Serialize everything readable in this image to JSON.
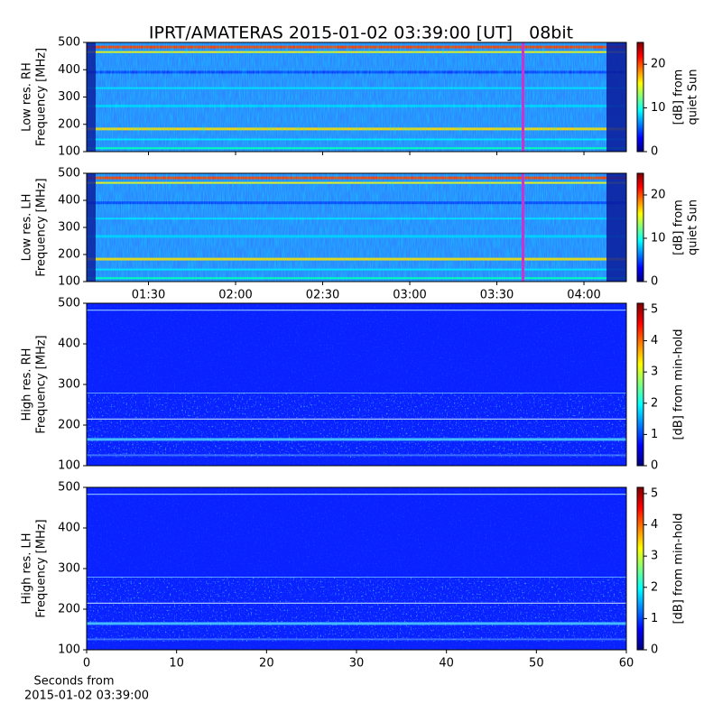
{
  "chart_data": [
    {
      "type": "heatmap",
      "title": "IPRT/AMATERAS 2015-01-02 03:39:00 [UT]   08bit",
      "ylabel": [
        "Low res. RH",
        "Frequency [MHz]"
      ],
      "ylim": [
        100,
        500
      ],
      "yticks": [
        100,
        200,
        300,
        400,
        500
      ],
      "xlim": [
        68.7,
        254.6
      ],
      "marker_x": 219,
      "marker_color": "#cc33cc",
      "colorbar_label": [
        "[dB] from",
        "quiet Sun"
      ],
      "clim": [
        0,
        25
      ],
      "cticks": [
        0,
        10,
        20
      ]
    },
    {
      "type": "heatmap",
      "ylabel": [
        "Low res. LH",
        "Frequency [MHz]"
      ],
      "ylim": [
        100,
        500
      ],
      "yticks": [
        100,
        200,
        300,
        400,
        500
      ],
      "xlim": [
        68.7,
        254.6
      ],
      "marker_x": 219,
      "marker_color": "#cc33cc",
      "xticks": [
        {
          "value": 90,
          "label": "01:30"
        },
        {
          "value": 120,
          "label": "02:00"
        },
        {
          "value": 150,
          "label": "02:30"
        },
        {
          "value": 180,
          "label": "03:00"
        },
        {
          "value": 210,
          "label": "03:30"
        },
        {
          "value": 240,
          "label": "04:00"
        }
      ],
      "colorbar_label": [
        "[dB] from",
        "quiet Sun"
      ],
      "clim": [
        0,
        25
      ],
      "cticks": [
        0,
        10,
        20
      ]
    },
    {
      "type": "heatmap",
      "ylabel": [
        "High res. RH",
        "Frequency [MHz]"
      ],
      "ylim": [
        100,
        500
      ],
      "yticks": [
        100,
        200,
        300,
        400,
        500
      ],
      "xlim": [
        0,
        60
      ],
      "colorbar_label": [
        "[dB] from min-hold"
      ],
      "clim": [
        0,
        5.2
      ],
      "cticks": [
        0,
        1,
        2,
        3,
        4,
        5
      ]
    },
    {
      "type": "heatmap",
      "ylabel": [
        "High res. LH",
        "Frequency [MHz]"
      ],
      "ylim": [
        100,
        500
      ],
      "yticks": [
        100,
        200,
        300,
        400,
        500
      ],
      "xlim": [
        0,
        60
      ],
      "xticks": [
        0,
        10,
        20,
        30,
        40,
        50,
        60
      ],
      "xlabel": [
        "Seconds from",
        "2015-01-02 03:39:00"
      ],
      "colorbar_label": [
        "[dB] from min-hold"
      ],
      "clim": [
        0,
        5.2
      ],
      "cticks": [
        0,
        1,
        2,
        3,
        4,
        5
      ]
    }
  ]
}
